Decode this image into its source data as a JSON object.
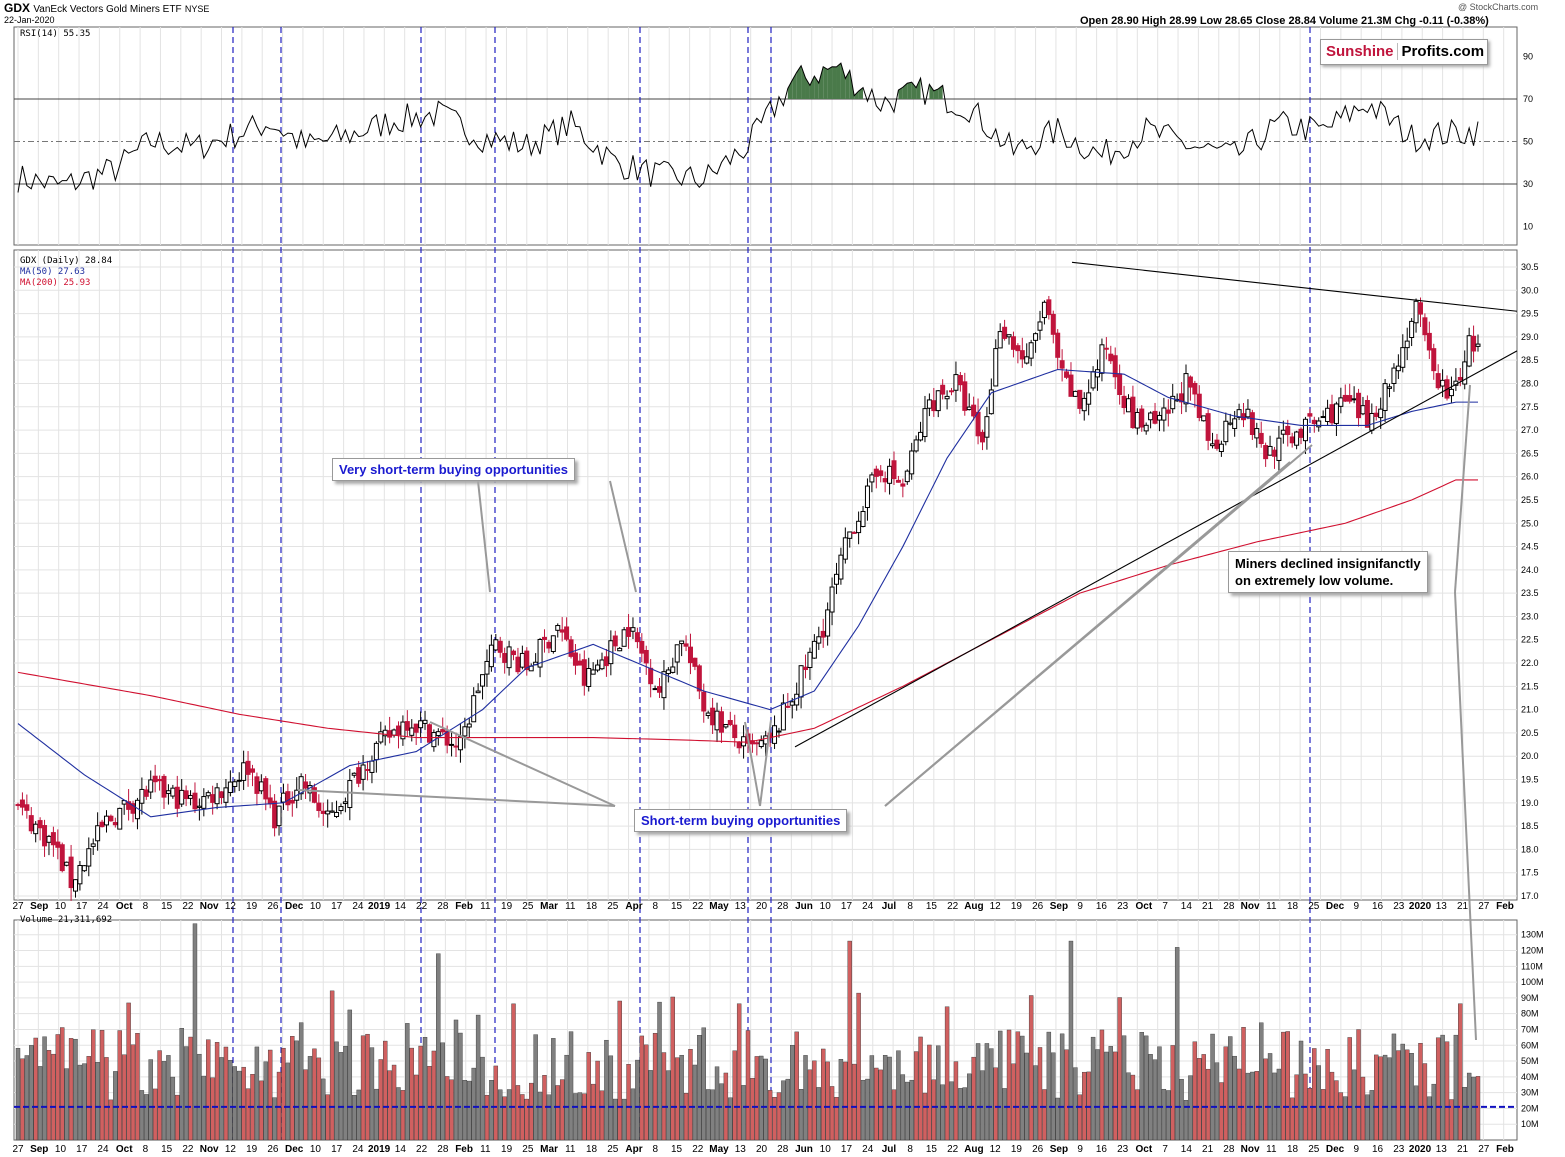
{
  "header": {
    "ticker": "GDX",
    "name": "VanEck Vectors Gold Miners ETF",
    "exchange": "NYSE",
    "date": "22-Jan-2020",
    "stats": "Open 28.90  High 28.99  Low 28.65  Close 28.84  Volume 21.3M  Chg -0.11 (-0.38%)",
    "credit": "@ StockCharts.com",
    "logo_part1": "Sunshine",
    "logo_part2": "Profits.com"
  },
  "legends": {
    "rsi": "RSI(14) 55.35",
    "price": "GDX (Daily) 28.84",
    "ma50": "MA(50) 27.63",
    "ma200": "MA(200) 25.93",
    "volume": "Volume 21,311,692"
  },
  "annotations": {
    "very_short_term": "Very short-term buying opportunities",
    "short_term": "Short-term buying opportunities",
    "miners_line1": "Miners declined insignifanctly",
    "miners_line2": "on extremely low volume."
  },
  "colors": {
    "up": "#000000",
    "down": "#c0143c",
    "ma50": "#1f2fa0",
    "ma200": "#d01030",
    "vol_up": "#808080",
    "vol_down": "#d06060",
    "marker_lines": "#2020c0",
    "rsi_ob_fill": "#4a7a4a",
    "rsi_os_fill": "#c06070"
  },
  "chart_data": [
    {
      "type": "line",
      "panel": "RSI(14)",
      "yticks": [
        10,
        30,
        50,
        70,
        90
      ],
      "ylim": [
        0,
        100
      ],
      "reference_lines": [
        30,
        50,
        70
      ],
      "series": [
        {
          "name": "RSI(14)",
          "x_index": [
            0,
            10,
            22,
            30,
            40,
            50,
            57,
            65,
            75,
            85,
            95,
            105,
            115,
            125,
            135,
            145,
            155,
            165,
            175,
            185,
            195,
            205,
            215,
            225,
            235,
            245,
            255,
            265,
            275,
            285,
            295,
            305,
            315,
            330
          ],
          "values": [
            33,
            29,
            37,
            50,
            47,
            54,
            59,
            48,
            53,
            60,
            63,
            52,
            48,
            58,
            40,
            34,
            32,
            48,
            78,
            85,
            68,
            74,
            66,
            45,
            55,
            43,
            55,
            48,
            43,
            58,
            55,
            68,
            52,
            55
          ]
        }
      ]
    },
    {
      "type": "candlestick",
      "panel": "GDX (Daily)",
      "ylim": [
        17.0,
        30.5
      ],
      "yticks": [
        17.0,
        17.5,
        18.0,
        18.5,
        19.0,
        19.5,
        20.0,
        20.5,
        21.0,
        21.5,
        22.0,
        22.5,
        23.0,
        23.5,
        24.0,
        24.5,
        25.0,
        25.5,
        26.0,
        26.5,
        27.0,
        27.5,
        28.0,
        28.5,
        29.0,
        29.5,
        30.0,
        30.5
      ],
      "xticks": [
        "27",
        "Sep",
        "10",
        "17",
        "24",
        "Oct",
        "8",
        "15",
        "22",
        "Nov",
        "12",
        "19",
        "26",
        "Dec",
        "10",
        "17",
        "24",
        "2019",
        "14",
        "22",
        "28",
        "Feb",
        "11",
        "19",
        "25",
        "Mar",
        "11",
        "18",
        "25",
        "Apr",
        "8",
        "15",
        "22",
        "May",
        "13",
        "20",
        "28",
        "Jun",
        "10",
        "17",
        "24",
        "Jul",
        "8",
        "15",
        "22",
        "Aug",
        "12",
        "19",
        "26",
        "Sep",
        "9",
        "16",
        "23",
        "Oct",
        "7",
        "14",
        "21",
        "28",
        "Nov",
        "11",
        "18",
        "25",
        "Dec",
        "9",
        "16",
        "23",
        "2020",
        "13",
        "21",
        "27",
        "Feb"
      ],
      "close_path": {
        "x_index": [
          0,
          8,
          12,
          20,
          30,
          40,
          46,
          52,
          58,
          64,
          70,
          80,
          88,
          100,
          104,
          108,
          115,
          122,
          128,
          134,
          138,
          145,
          150,
          155,
          160,
          165,
          170,
          178,
          182,
          188,
          195,
          200,
          206,
          212,
          218,
          222,
          228,
          232,
          236,
          240,
          246,
          252,
          258,
          264,
          270,
          276,
          282,
          288,
          294,
          300,
          305,
          310,
          316,
          320,
          324,
          328
        ],
        "values": [
          18.9,
          18.1,
          17.3,
          18.6,
          19.3,
          19.0,
          19.3,
          19.8,
          18.7,
          19.5,
          18.6,
          20.1,
          20.8,
          20.2,
          21.5,
          22.4,
          21.9,
          22.8,
          21.6,
          22.3,
          22.8,
          21.4,
          22.6,
          21.1,
          20.6,
          20.1,
          20.3,
          21.9,
          22.8,
          24.8,
          26.2,
          25.8,
          27.6,
          28.0,
          26.7,
          29.3,
          28.4,
          29.7,
          28.1,
          27.5,
          28.8,
          27.2,
          27.1,
          28.0,
          26.6,
          27.6,
          26.5,
          26.9,
          27.2,
          27.6,
          27.2,
          28.0,
          29.6,
          28.2,
          27.7,
          28.84
        ]
      },
      "series": [
        {
          "name": "MA(50)",
          "last": 27.63,
          "x_index": [
            0,
            15,
            30,
            45,
            60,
            75,
            90,
            105,
            115,
            130,
            140,
            155,
            170,
            180,
            190,
            200,
            210,
            220,
            235,
            250,
            260,
            275,
            290,
            305,
            315,
            325
          ],
          "values": [
            20.7,
            19.6,
            18.7,
            18.9,
            19.0,
            19.8,
            20.1,
            21.0,
            21.9,
            22.4,
            22.0,
            21.4,
            21.0,
            21.4,
            22.8,
            24.5,
            26.4,
            27.8,
            28.3,
            28.2,
            27.7,
            27.3,
            27.1,
            27.1,
            27.4,
            27.6
          ]
        },
        {
          "name": "MA(200)",
          "last": 25.93,
          "x_index": [
            0,
            30,
            50,
            70,
            90,
            110,
            130,
            150,
            165,
            180,
            200,
            220,
            240,
            260,
            280,
            300,
            315,
            325
          ],
          "values": [
            21.8,
            21.3,
            20.9,
            20.6,
            20.4,
            20.4,
            20.4,
            20.35,
            20.3,
            20.6,
            21.5,
            22.5,
            23.5,
            24.1,
            24.6,
            25.0,
            25.5,
            25.93
          ]
        }
      ],
      "trendlines": [
        {
          "from": [
            "Sep 2019",
            30.6
          ],
          "to": [
            "Feb 2020",
            29.55
          ]
        },
        {
          "from": [
            "May 2019",
            20.2
          ],
          "to": [
            "Feb 2020",
            28.7
          ]
        }
      ]
    },
    {
      "type": "bar",
      "panel": "Volume",
      "yticks": [
        "10M",
        "20M",
        "30M",
        "40M",
        "50M",
        "60M",
        "70M",
        "80M",
        "90M",
        "100M",
        "110M",
        "120M",
        "130M"
      ],
      "ylim": [
        0,
        135
      ],
      "unit": "M shares",
      "last_value": 21311692,
      "average_line": 21,
      "notable_spikes": [
        {
          "x_index": 40,
          "value": 137
        },
        {
          "x_index": 95,
          "value": 118
        },
        {
          "x_index": 188,
          "value": 126
        },
        {
          "x_index": 238,
          "value": 126
        },
        {
          "x_index": 262,
          "value": 122
        }
      ]
    }
  ]
}
